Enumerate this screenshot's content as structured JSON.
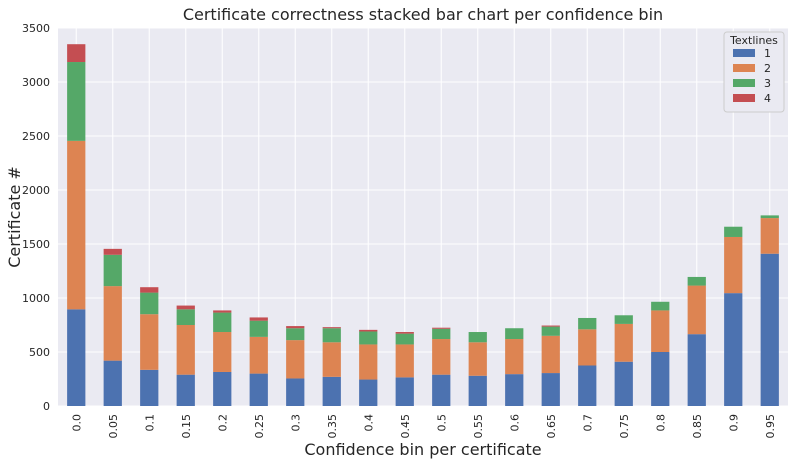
{
  "chart_data": {
    "type": "bar",
    "stacked": true,
    "title": "Certificate correctness stacked bar chart per confidence bin",
    "xlabel": "Confidence bin per certificate",
    "ylabel": "Certificate #",
    "categories": [
      "0.0",
      "0.05",
      "0.1",
      "0.15",
      "0.2",
      "0.25",
      "0.3",
      "0.35",
      "0.4",
      "0.45",
      "0.5",
      "0.55",
      "0.6",
      "0.65",
      "0.7",
      "0.75",
      "0.8",
      "0.85",
      "0.9",
      "0.95"
    ],
    "series": [
      {
        "name": "1",
        "color": "#4c72b0",
        "values": [
          895,
          420,
          335,
          290,
          315,
          300,
          255,
          270,
          245,
          265,
          290,
          280,
          295,
          305,
          375,
          410,
          500,
          665,
          1045,
          1410
        ]
      },
      {
        "name": "2",
        "color": "#dd8452",
        "values": [
          1560,
          690,
          515,
          460,
          370,
          340,
          355,
          320,
          325,
          305,
          330,
          310,
          325,
          345,
          335,
          350,
          385,
          450,
          520,
          330
        ]
      },
      {
        "name": "3",
        "color": "#55a868",
        "values": [
          730,
          290,
          200,
          145,
          180,
          150,
          110,
          130,
          120,
          100,
          95,
          95,
          100,
          85,
          105,
          80,
          80,
          80,
          95,
          25
        ]
      },
      {
        "name": "4",
        "color": "#c44e52",
        "values": [
          165,
          55,
          50,
          35,
          20,
          30,
          20,
          10,
          15,
          15,
          10,
          0,
          0,
          10,
          0,
          0,
          0,
          0,
          0,
          0
        ]
      }
    ],
    "ylim": [
      0,
      3500
    ],
    "yticks": [
      0,
      500,
      1000,
      1500,
      2000,
      2500,
      3000,
      3500
    ],
    "grid": true,
    "legend": {
      "title": "Textlines",
      "placement": "top-right"
    },
    "background": "#eaeaf2",
    "grid_color": "#ffffff"
  }
}
